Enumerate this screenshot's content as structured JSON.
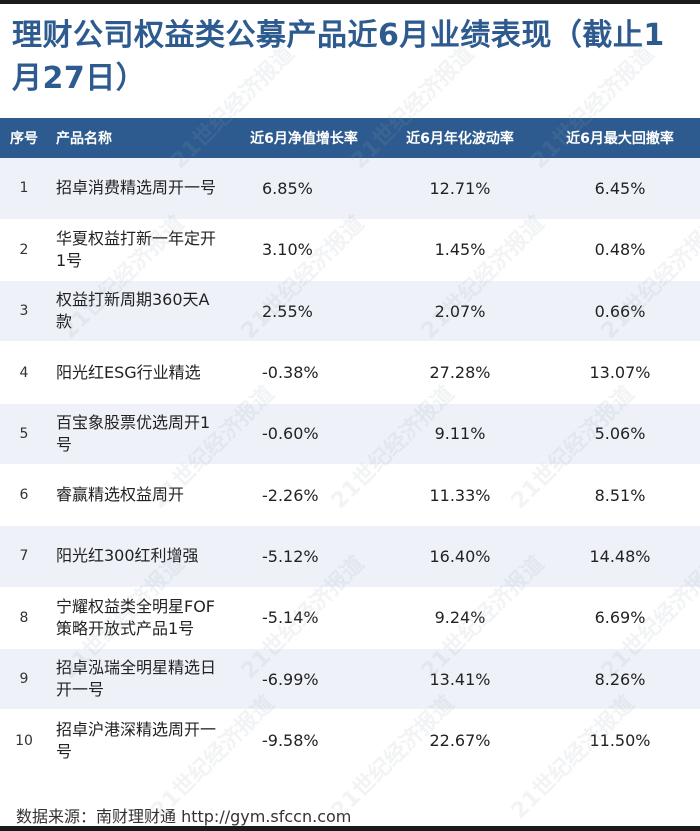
{
  "title": "理财公司权益类公募产品近6月业绩表现（截止1月27日）",
  "columns": [
    "序号",
    "产品名称",
    "近6月净值增长率",
    "近6月年化波动率",
    "近6月最大回撤率"
  ],
  "rows": [
    {
      "idx": "1",
      "name": "招卓消费精选周开一号",
      "ret": "6.85%",
      "vol": "12.71%",
      "dd": "6.45%"
    },
    {
      "idx": "2",
      "name": "华夏权益打新一年定开1号",
      "ret": "3.10%",
      "vol": "1.45%",
      "dd": "0.48%"
    },
    {
      "idx": "3",
      "name": "权益打新周期360天A款",
      "ret": "2.55%",
      "vol": "2.07%",
      "dd": "0.66%"
    },
    {
      "idx": "4",
      "name": "阳光红ESG行业精选",
      "ret": "-0.38%",
      "vol": "27.28%",
      "dd": "13.07%"
    },
    {
      "idx": "5",
      "name": "百宝象股票优选周开1号",
      "ret": "-0.60%",
      "vol": "9.11%",
      "dd": "5.06%"
    },
    {
      "idx": "6",
      "name": "睿赢精选权益周开",
      "ret": "-2.26%",
      "vol": "11.33%",
      "dd": "8.51%"
    },
    {
      "idx": "7",
      "name": "阳光红300红利增强",
      "ret": "-5.12%",
      "vol": "16.40%",
      "dd": "14.48%"
    },
    {
      "idx": "8",
      "name": "宁耀权益类全明星FOF策略开放式产品1号",
      "ret": "-5.14%",
      "vol": "9.24%",
      "dd": "6.69%"
    },
    {
      "idx": "9",
      "name": "招卓泓瑞全明星精选日开一号",
      "ret": "-6.99%",
      "vol": "13.41%",
      "dd": "8.26%"
    },
    {
      "idx": "10",
      "name": "招卓沪港深精选周开一号",
      "ret": "-9.58%",
      "vol": "22.67%",
      "dd": "11.50%"
    }
  ],
  "source": "数据来源：南财理财通 http://gym.sfccn.com",
  "watermark": "21世纪经济报道",
  "colors": {
    "accent": "#2e5b8f",
    "stripe": "#eef2f8"
  }
}
